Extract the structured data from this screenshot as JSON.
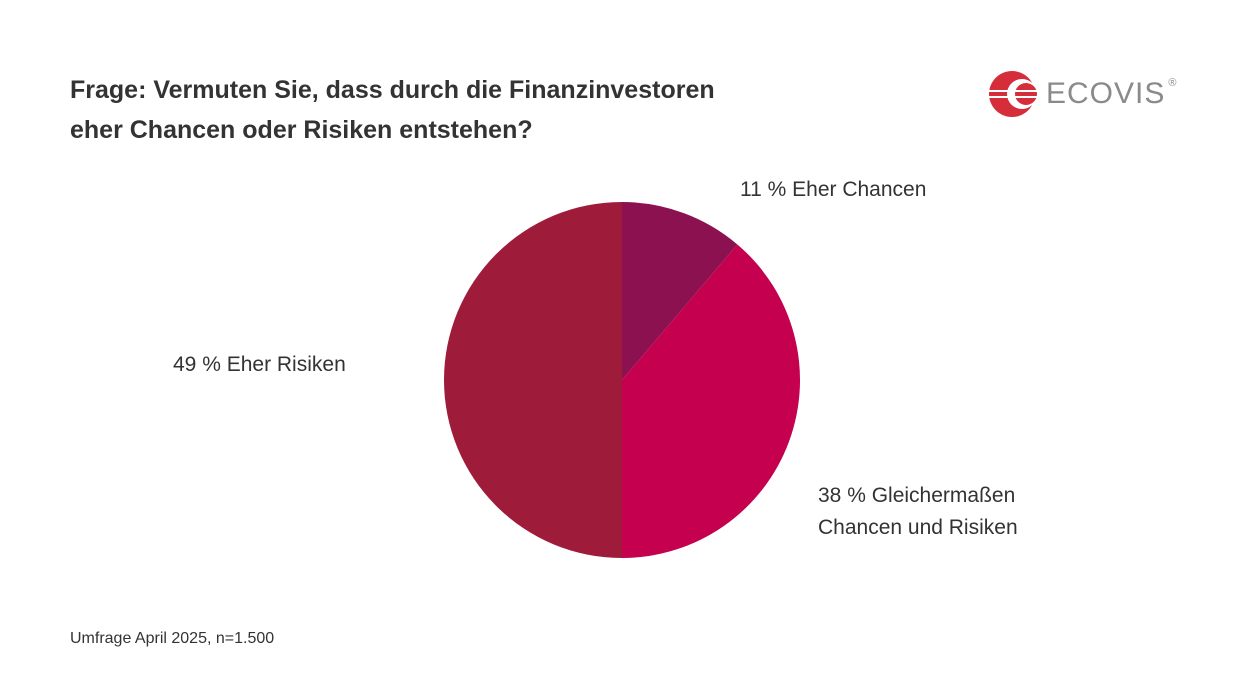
{
  "chart_data": {
    "type": "pie",
    "title": "Frage: Vermuten Sie, dass durch die Finanzinvestoren eher Chancen oder Risiken entstehen?",
    "slices": [
      {
        "label": "11 % Eher Chancen",
        "value": 11,
        "color": "#8c1150"
      },
      {
        "label": "38 % Gleichermaßen Chancen und Risiken",
        "label_lines": [
          "38 % Gleichermaßen",
          "Chancen und Risiken"
        ],
        "value": 38,
        "color": "#c4004f"
      },
      {
        "label": "49 % Eher Risiken",
        "value": 49,
        "color": "#9e1b3a"
      }
    ],
    "start": "top",
    "direction": "clockwise"
  },
  "title_lines": [
    "Frage: Vermuten Sie, dass durch die Finanzinvestoren",
    "eher Chancen oder Risiken entstehen?"
  ],
  "footnote": "Umfrage April 2025, n=1.500",
  "logo": {
    "text": "ECOVIS",
    "reg": "®",
    "color": "#d62d3b"
  }
}
